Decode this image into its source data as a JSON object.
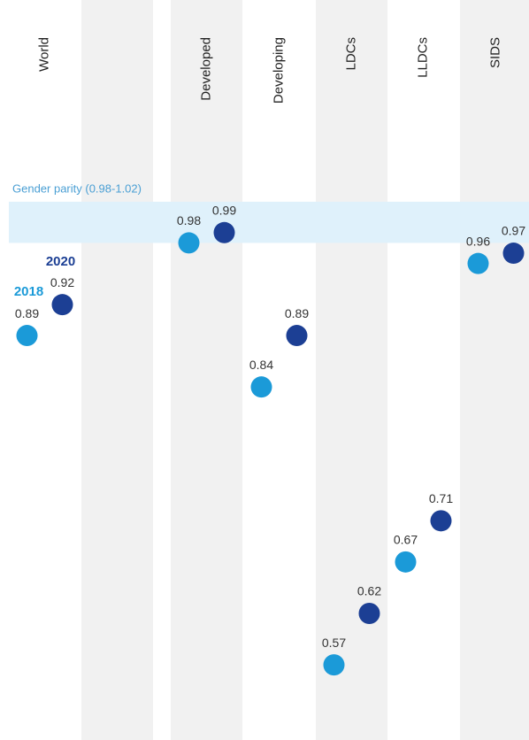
{
  "chart_data": {
    "type": "dot",
    "categories": [
      "World",
      null,
      "Developed",
      "Developing",
      "LDCs",
      "LLDCs",
      "SIDS"
    ],
    "series": [
      {
        "name": "2018",
        "color": "#1b9ad8",
        "values": [
          0.89,
          null,
          0.98,
          0.84,
          0.57,
          0.67,
          0.96
        ]
      },
      {
        "name": "2020",
        "color": "#1c3f94",
        "values": [
          0.92,
          null,
          0.99,
          0.89,
          0.62,
          0.71,
          0.97
        ]
      }
    ],
    "ylim": [
      0.497,
      1.216
    ],
    "band": {
      "label": "Gender parity (0.98-1.02)",
      "range": [
        0.98,
        1.02
      ],
      "color": "#dff1fb"
    }
  }
}
